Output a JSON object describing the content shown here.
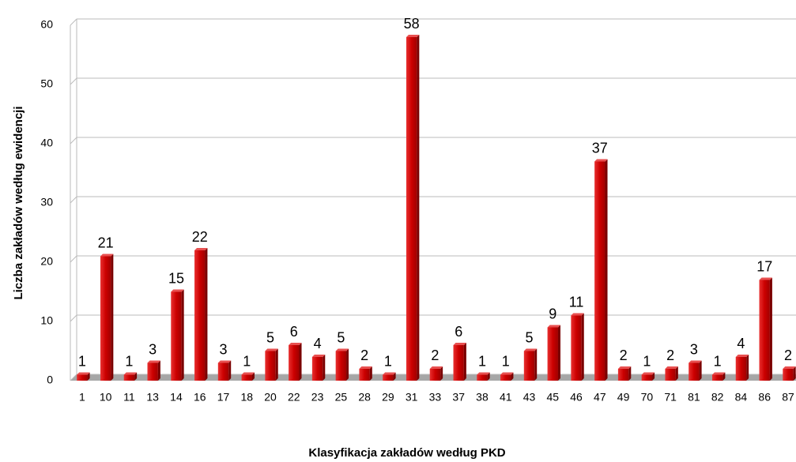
{
  "chart_data": {
    "type": "bar",
    "y_label": "Liczba zakładów według ewidencji",
    "x_label": "Klasyfikacja zakładów według PKD",
    "categories": [
      "1",
      "10",
      "11",
      "13",
      "14",
      "16",
      "17",
      "18",
      "20",
      "22",
      "23",
      "25",
      "28",
      "29",
      "31",
      "33",
      "37",
      "38",
      "41",
      "43",
      "45",
      "46",
      "47",
      "49",
      "70",
      "71",
      "81",
      "82",
      "84",
      "86",
      "87"
    ],
    "values": [
      1,
      21,
      1,
      3,
      15,
      22,
      3,
      1,
      5,
      6,
      4,
      5,
      2,
      1,
      58,
      2,
      6,
      1,
      1,
      5,
      9,
      11,
      37,
      2,
      1,
      2,
      3,
      1,
      4,
      17,
      2
    ],
    "color": "#cc0000",
    "ylim": [
      0,
      60
    ],
    "yticks": [
      0,
      10,
      20,
      30,
      40,
      50,
      60
    ],
    "grid": true
  }
}
